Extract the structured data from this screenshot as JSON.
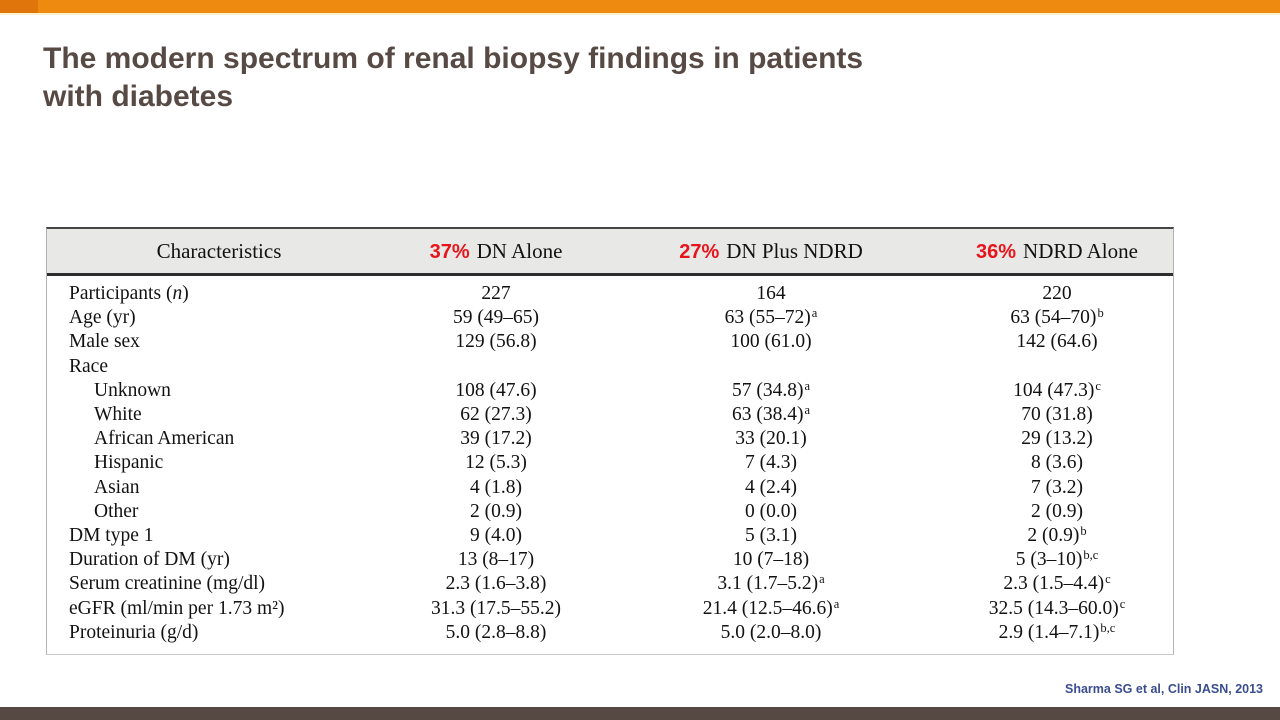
{
  "slide": {
    "title_line1": "The modern spectrum of renal biopsy findings in patients",
    "title_line2": "with diabetes",
    "citation": "Sharma SG et al, Clin JASN, 2013"
  },
  "table": {
    "header": {
      "characteristics": "Characteristics",
      "columns": [
        {
          "pct": "37%",
          "name": "DN Alone"
        },
        {
          "pct": "27%",
          "name": "DN Plus NDRD"
        },
        {
          "pct": "36%",
          "name": "NDRD Alone"
        }
      ]
    },
    "rows": [
      {
        "label": "Participants (n)",
        "indent": false,
        "values": [
          "227",
          "164",
          "220"
        ]
      },
      {
        "label": "Age (yr)",
        "indent": false,
        "values": [
          "59 (49–65)",
          "63 (55–72)^a",
          "63 (54–70)^b"
        ]
      },
      {
        "label": "Male sex",
        "indent": false,
        "values": [
          "129 (56.8)",
          "100 (61.0)",
          "142 (64.6)"
        ]
      },
      {
        "label": "Race",
        "indent": false,
        "values": [
          "",
          "",
          ""
        ]
      },
      {
        "label": "Unknown",
        "indent": true,
        "values": [
          "108 (47.6)",
          "57 (34.8)^a",
          "104 (47.3)^c"
        ]
      },
      {
        "label": "White",
        "indent": true,
        "values": [
          "62 (27.3)",
          "63 (38.4)^a",
          "70 (31.8)"
        ]
      },
      {
        "label": "African American",
        "indent": true,
        "values": [
          "39 (17.2)",
          "33 (20.1)",
          "29 (13.2)"
        ]
      },
      {
        "label": "Hispanic",
        "indent": true,
        "values": [
          "12 (5.3)",
          "7 (4.3)",
          "8 (3.6)"
        ]
      },
      {
        "label": "Asian",
        "indent": true,
        "values": [
          "4 (1.8)",
          "4 (2.4)",
          "7 (3.2)"
        ]
      },
      {
        "label": "Other",
        "indent": true,
        "values": [
          "2 (0.9)",
          "0 (0.0)",
          "2 (0.9)"
        ]
      },
      {
        "label": "DM type 1",
        "indent": false,
        "values": [
          "9 (4.0)",
          "5 (3.1)",
          "2 (0.9)^b"
        ]
      },
      {
        "label": "Duration of DM (yr)",
        "indent": false,
        "values": [
          "13 (8–17)",
          "10 (7–18)",
          "5 (3–10)^b,c"
        ]
      },
      {
        "label": "Serum creatinine (mg/dl)",
        "indent": false,
        "values": [
          "2.3 (1.6–3.8)",
          "3.1 (1.7–5.2)^a",
          "2.3 (1.5–4.4)^c"
        ]
      },
      {
        "label": "eGFR (ml/min per 1.73 m²)",
        "indent": false,
        "values": [
          "31.3 (17.5–55.2)",
          "21.4 (12.5–46.6)^a",
          "32.5 (14.3–60.0)^c"
        ]
      },
      {
        "label": "Proteinuria (g/d)",
        "indent": false,
        "values": [
          "5.0 (2.8–8.8)",
          "5.0 (2.0–8.0)",
          "2.9 (1.4–7.1)^b,c"
        ]
      }
    ]
  },
  "colors": {
    "accent_orange": "#EE8A0F",
    "accent_orange_dark": "#E0750B",
    "accent_cream": "#F8F3CC",
    "footer_brown": "#564842",
    "title_text": "#574944",
    "pct_red": "#E8141B",
    "header_bg": "#E8E8E7",
    "citation_blue": "#3A4E8F"
  }
}
